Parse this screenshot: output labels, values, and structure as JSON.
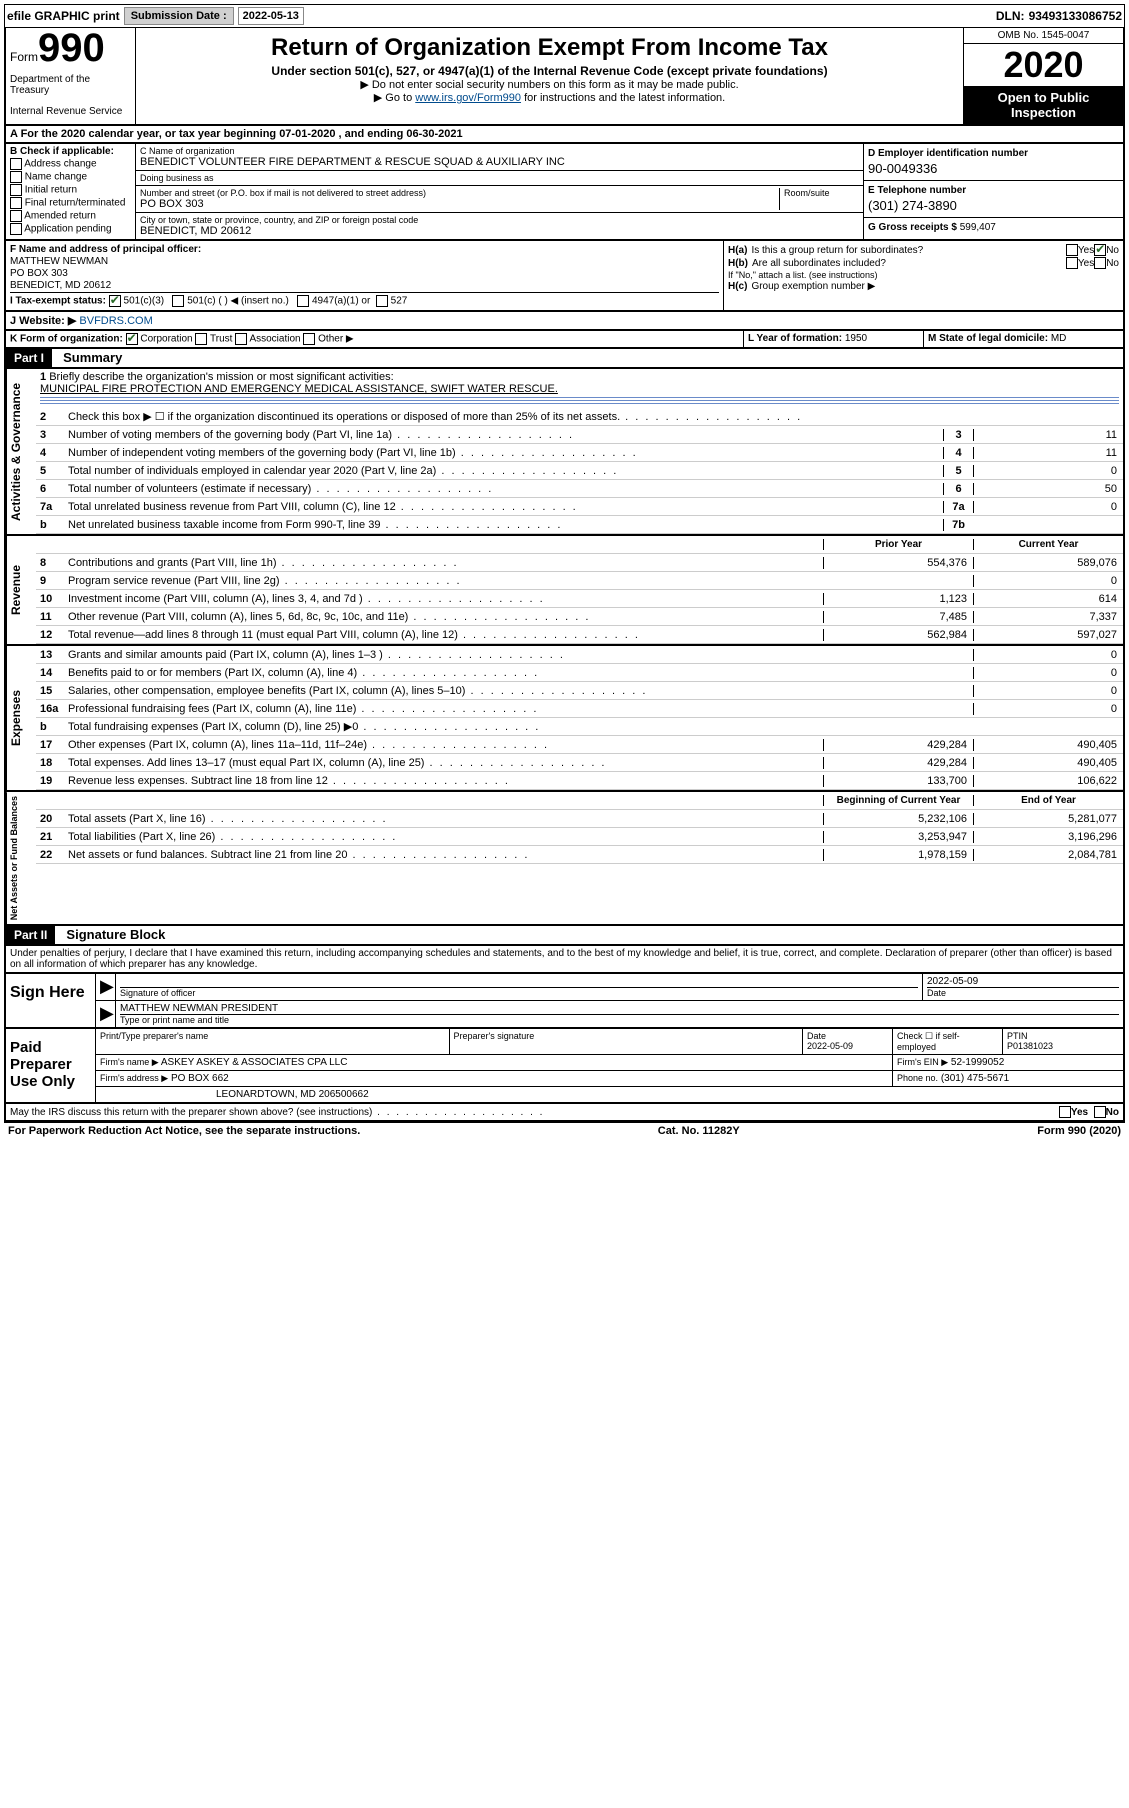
{
  "topbar": {
    "efile_label": "efile GRAPHIC print",
    "submission_label": "Submission Date :",
    "submission_date": "2022-05-13",
    "dln_label": "DLN:",
    "dln_value": "93493133086752"
  },
  "header": {
    "form_word": "Form",
    "form_number": "990",
    "dept1": "Department of the Treasury",
    "dept2": "Internal Revenue Service",
    "title": "Return of Organization Exempt From Income Tax",
    "sub1": "Under section 501(c), 527, or 4947(a)(1) of the Internal Revenue Code (except private foundations)",
    "sub2": "▶ Do not enter social security numbers on this form as it may be made public.",
    "sub3_pre": "▶ Go to ",
    "sub3_link": "www.irs.gov/Form990",
    "sub3_post": " for instructions and the latest information.",
    "omb": "OMB No. 1545-0047",
    "year": "2020",
    "open": "Open to Public Inspection"
  },
  "sectionA": "A For the 2020 calendar year, or tax year beginning 07-01-2020    , and ending 06-30-2021",
  "colB": {
    "title": "B Check if applicable:",
    "items": [
      "Address change",
      "Name change",
      "Initial return",
      "Final return/terminated",
      "Amended return",
      "Application pending"
    ]
  },
  "colC": {
    "name_lbl": "C Name of organization",
    "name_val": "BENEDICT VOLUNTEER FIRE DEPARTMENT & RESCUE SQUAD & AUXILIARY INC",
    "dba_lbl": "Doing business as",
    "dba_val": "",
    "street_lbl": "Number and street (or P.O. box if mail is not delivered to street address)",
    "room_lbl": "Room/suite",
    "street_val": "PO BOX 303",
    "city_lbl": "City or town, state or province, country, and ZIP or foreign postal code",
    "city_val": "BENEDICT, MD  20612"
  },
  "colD": {
    "ein_lbl": "D Employer identification number",
    "ein_val": "90-0049336",
    "phone_lbl": "E Telephone number",
    "phone_val": "(301) 274-3890",
    "gross_lbl": "G Gross receipts $",
    "gross_val": "599,407"
  },
  "colF": {
    "lbl": "F Name and address of principal officer:",
    "name": "MATTHEW NEWMAN",
    "addr1": "PO BOX 303",
    "addr2": "BENEDICT, MD  20612"
  },
  "colI": {
    "lbl": "I Tax-exempt status:",
    "c1": "501(c)(3)",
    "c2": "501(c) (  ) ◀ (insert no.)",
    "c3": "4947(a)(1) or",
    "c4": "527"
  },
  "colH": {
    "ha_lbl": "H(a)",
    "ha_txt": "Is this a group return for subordinates?",
    "hb_lbl": "H(b)",
    "hb_txt": "Are all subordinates included?",
    "hb_note": "If \"No,\" attach a list. (see instructions)",
    "hc_lbl": "H(c)",
    "hc_txt": "Group exemption number ▶",
    "yes": "Yes",
    "no": "No"
  },
  "rowJ": {
    "lbl": "J Website: ▶",
    "val": "BVFDRS.COM"
  },
  "rowK": {
    "k1_lbl": "K Form of organization:",
    "k1_opts": [
      "Corporation",
      "Trust",
      "Association",
      "Other ▶"
    ],
    "k2_lbl": "L Year of formation:",
    "k2_val": "1950",
    "k3_lbl": "M State of legal domicile:",
    "k3_val": "MD"
  },
  "partI": {
    "label": "Part I",
    "title": "Summary"
  },
  "mission": {
    "q1_num": "1",
    "q1": "Briefly describe the organization's mission or most significant activities:",
    "q1_val": "MUNICIPAL FIRE PROTECTION AND EMERGENCY MEDICAL ASSISTANCE, SWIFT WATER RESCUE."
  },
  "gov_side": "Activities & Governance",
  "gov_lines": [
    {
      "n": "2",
      "d": "Check this box ▶ ☐ if the organization discontinued its operations or disposed of more than 25% of its net assets.",
      "b": "",
      "v": ""
    },
    {
      "n": "3",
      "d": "Number of voting members of the governing body (Part VI, line 1a)",
      "b": "3",
      "v": "11"
    },
    {
      "n": "4",
      "d": "Number of independent voting members of the governing body (Part VI, line 1b)",
      "b": "4",
      "v": "11"
    },
    {
      "n": "5",
      "d": "Total number of individuals employed in calendar year 2020 (Part V, line 2a)",
      "b": "5",
      "v": "0"
    },
    {
      "n": "6",
      "d": "Total number of volunteers (estimate if necessary)",
      "b": "6",
      "v": "50"
    },
    {
      "n": "7a",
      "d": "Total unrelated business revenue from Part VIII, column (C), line 12",
      "b": "7a",
      "v": "0"
    },
    {
      "n": "b",
      "d": "Net unrelated business taxable income from Form 990-T, line 39",
      "b": "7b",
      "v": ""
    }
  ],
  "rev_side": "Revenue",
  "rev_hdr": {
    "c1": "Prior Year",
    "c2": "Current Year"
  },
  "rev_lines": [
    {
      "n": "8",
      "d": "Contributions and grants (Part VIII, line 1h)",
      "v1": "554,376",
      "v2": "589,076"
    },
    {
      "n": "9",
      "d": "Program service revenue (Part VIII, line 2g)",
      "v1": "",
      "v2": "0"
    },
    {
      "n": "10",
      "d": "Investment income (Part VIII, column (A), lines 3, 4, and 7d )",
      "v1": "1,123",
      "v2": "614"
    },
    {
      "n": "11",
      "d": "Other revenue (Part VIII, column (A), lines 5, 6d, 8c, 9c, 10c, and 11e)",
      "v1": "7,485",
      "v2": "7,337"
    },
    {
      "n": "12",
      "d": "Total revenue—add lines 8 through 11 (must equal Part VIII, column (A), line 12)",
      "v1": "562,984",
      "v2": "597,027"
    }
  ],
  "exp_side": "Expenses",
  "exp_lines": [
    {
      "n": "13",
      "d": "Grants and similar amounts paid (Part IX, column (A), lines 1–3 )",
      "v1": "",
      "v2": "0"
    },
    {
      "n": "14",
      "d": "Benefits paid to or for members (Part IX, column (A), line 4)",
      "v1": "",
      "v2": "0"
    },
    {
      "n": "15",
      "d": "Salaries, other compensation, employee benefits (Part IX, column (A), lines 5–10)",
      "v1": "",
      "v2": "0"
    },
    {
      "n": "16a",
      "d": "Professional fundraising fees (Part IX, column (A), line 11e)",
      "v1": "",
      "v2": "0"
    },
    {
      "n": "b",
      "d": "Total fundraising expenses (Part IX, column (D), line 25) ▶0",
      "v1": "shade",
      "v2": "shade"
    },
    {
      "n": "17",
      "d": "Other expenses (Part IX, column (A), lines 11a–11d, 11f–24e)",
      "v1": "429,284",
      "v2": "490,405"
    },
    {
      "n": "18",
      "d": "Total expenses. Add lines 13–17 (must equal Part IX, column (A), line 25)",
      "v1": "429,284",
      "v2": "490,405"
    },
    {
      "n": "19",
      "d": "Revenue less expenses. Subtract line 18 from line 12",
      "v1": "133,700",
      "v2": "106,622"
    }
  ],
  "net_side": "Net Assets or Fund Balances",
  "net_hdr": {
    "c1": "Beginning of Current Year",
    "c2": "End of Year"
  },
  "net_lines": [
    {
      "n": "20",
      "d": "Total assets (Part X, line 16)",
      "v1": "5,232,106",
      "v2": "5,281,077"
    },
    {
      "n": "21",
      "d": "Total liabilities (Part X, line 26)",
      "v1": "3,253,947",
      "v2": "3,196,296"
    },
    {
      "n": "22",
      "d": "Net assets or fund balances. Subtract line 21 from line 20",
      "v1": "1,978,159",
      "v2": "2,084,781"
    }
  ],
  "partII": {
    "label": "Part II",
    "title": "Signature Block"
  },
  "perjury": "Under penalties of perjury, I declare that I have examined this return, including accompanying schedules and statements, and to the best of my knowledge and belief, it is true, correct, and complete. Declaration of preparer (other than officer) is based on all information of which preparer has any knowledge.",
  "sign": {
    "left": "Sign Here",
    "sig_officer_lbl": "Signature of officer",
    "date_lbl": "Date",
    "date_val": "2022-05-09",
    "name_val": "MATTHEW NEWMAN  PRESIDENT",
    "name_lbl": "Type or print name and title"
  },
  "prep": {
    "left": "Paid Preparer Use Only",
    "h1": "Print/Type preparer's name",
    "h2": "Preparer's signature",
    "h3": "Date",
    "h3v": "2022-05-09",
    "h4": "Check ☐ if self-employed",
    "h5": "PTIN",
    "h5v": "P01381023",
    "firm_name_lbl": "Firm's name    ▶",
    "firm_name": "ASKEY ASKEY & ASSOCIATES CPA LLC",
    "firm_ein_lbl": "Firm's EIN ▶",
    "firm_ein": "52-1999052",
    "firm_addr_lbl": "Firm's address ▶",
    "firm_addr1": "PO BOX 662",
    "firm_addr2": "LEONARDTOWN, MD  206500662",
    "phone_lbl": "Phone no.",
    "phone": "(301) 475-5671"
  },
  "discuss": {
    "q": "May the IRS discuss this return with the preparer shown above? (see instructions)",
    "yes": "Yes",
    "no": "No"
  },
  "footer": {
    "left": "For Paperwork Reduction Act Notice, see the separate instructions.",
    "mid": "Cat. No. 11282Y",
    "right": "Form 990 (2020)"
  }
}
